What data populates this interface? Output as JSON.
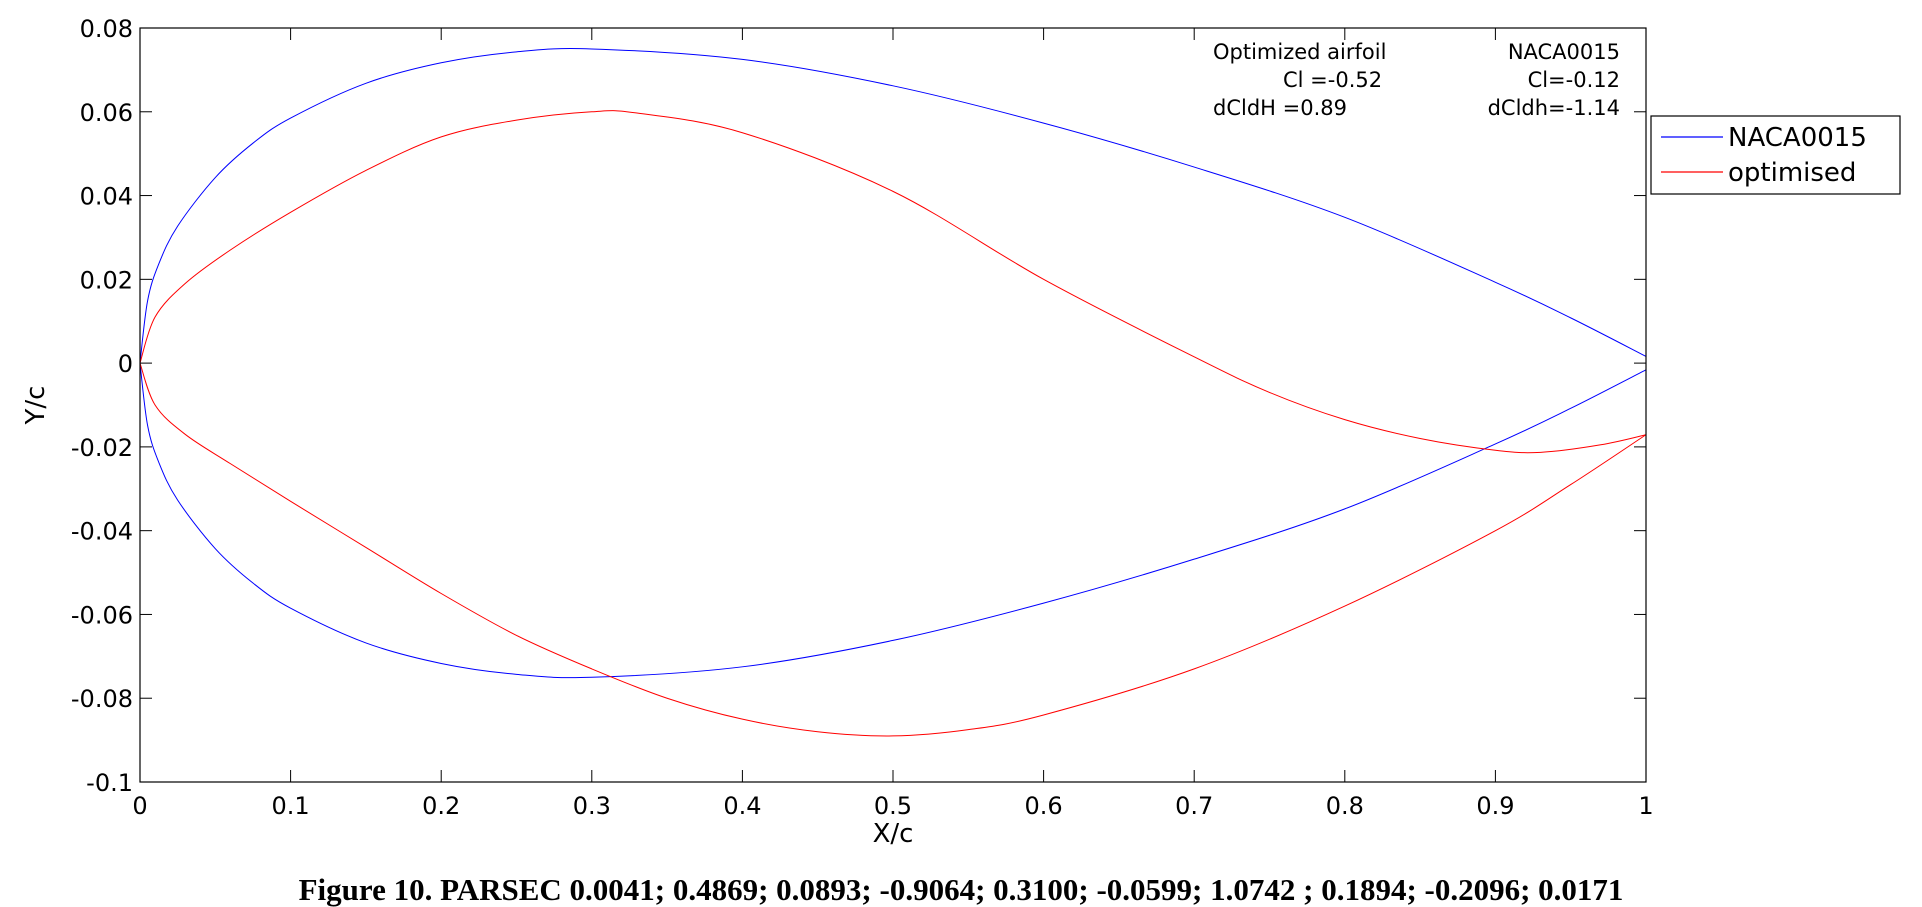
{
  "chart_data": {
    "type": "line",
    "xlabel": "X/c",
    "ylabel": "Y/c",
    "xlim": [
      0,
      1
    ],
    "ylim": [
      -0.1,
      0.08
    ],
    "x_ticks": [
      "0",
      "0.1",
      "0.2",
      "0.3",
      "0.4",
      "0.5",
      "0.6",
      "0.7",
      "0.8",
      "0.9",
      "1"
    ],
    "y_ticks": [
      "0.08",
      "0.06",
      "0.04",
      "0.02",
      "0",
      "-0.02",
      "-0.04",
      "-0.06",
      "-0.08",
      "-0.1"
    ],
    "grid": false,
    "legend_position": "outside-right-top",
    "series": [
      {
        "name": "NACA0015",
        "color": "#0000ff",
        "upper": {
          "x": [
            0,
            0.005,
            0.0125,
            0.025,
            0.05,
            0.075,
            0.1,
            0.15,
            0.2,
            0.25,
            0.3,
            0.4,
            0.5,
            0.6,
            0.7,
            0.8,
            0.9,
            0.95,
            1.0
          ],
          "y": [
            0,
            0.0148,
            0.0237,
            0.0327,
            0.0443,
            0.0525,
            0.0585,
            0.0668,
            0.0717,
            0.0743,
            0.075,
            0.0725,
            0.0662,
            0.0573,
            0.0468,
            0.0348,
            0.0193,
            0.0108,
            0.0016
          ]
        },
        "lower": {
          "x": [
            0,
            0.005,
            0.0125,
            0.025,
            0.05,
            0.075,
            0.1,
            0.15,
            0.2,
            0.25,
            0.3,
            0.4,
            0.5,
            0.6,
            0.7,
            0.8,
            0.9,
            0.95,
            1.0
          ],
          "y": [
            0,
            -0.0148,
            -0.0237,
            -0.0327,
            -0.0443,
            -0.0525,
            -0.0585,
            -0.0668,
            -0.0717,
            -0.0743,
            -0.075,
            -0.0725,
            -0.0662,
            -0.0573,
            -0.0468,
            -0.0348,
            -0.0193,
            -0.0108,
            -0.0016
          ]
        }
      },
      {
        "name": "optimised",
        "color": "#ff0000",
        "upper": {
          "x": [
            0,
            0.01,
            0.03,
            0.06,
            0.1,
            0.15,
            0.2,
            0.25,
            0.3,
            0.33,
            0.4,
            0.5,
            0.6,
            0.7,
            0.75,
            0.8,
            0.85,
            0.9,
            0.93,
            0.97,
            1.0
          ],
          "y": [
            0,
            0.011,
            0.019,
            0.027,
            0.036,
            0.046,
            0.054,
            0.058,
            0.06,
            0.0597,
            0.055,
            0.041,
            0.02,
            0.0015,
            -0.007,
            -0.0135,
            -0.018,
            -0.0208,
            -0.0213,
            -0.0195,
            -0.0171
          ]
        },
        "lower": {
          "x": [
            0,
            0.01,
            0.03,
            0.06,
            0.1,
            0.15,
            0.2,
            0.25,
            0.3,
            0.35,
            0.4,
            0.45,
            0.5,
            0.55,
            0.6,
            0.7,
            0.8,
            0.9,
            0.95,
            1.0
          ],
          "y": [
            0,
            -0.01,
            -0.017,
            -0.024,
            -0.033,
            -0.044,
            -0.055,
            -0.065,
            -0.073,
            -0.08,
            -0.085,
            -0.088,
            -0.089,
            -0.0875,
            -0.084,
            -0.073,
            -0.058,
            -0.04,
            -0.029,
            -0.0171
          ]
        }
      }
    ],
    "annotations": {
      "optimized_title": "Optimized airfoil",
      "optimized_cl": "Cl =-0.52",
      "optimized_dcldh": "dCldH =0.89",
      "naca_title": "NACA0015",
      "naca_cl": "Cl=-0.12",
      "naca_dcldh": "dCldh=-1.14"
    }
  },
  "caption": "Figure 10. PARSEC 0.0041; 0.4869; 0.0893; -0.9064; 0.3100; -0.0599; 1.0742     ; 0.1894; -0.2096;  0.0171"
}
